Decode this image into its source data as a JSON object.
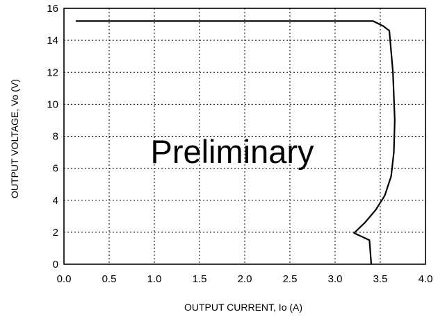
{
  "chart_data": {
    "type": "line",
    "xlabel": "OUTPUT CURRENT, Io (A)",
    "ylabel": "OUTPUT VOLTAGE, Vo (V)",
    "xlim": [
      0,
      4.0
    ],
    "ylim": [
      0,
      16
    ],
    "x_ticks": [
      "0.0",
      "0.5",
      "1.0",
      "1.5",
      "2.0",
      "2.5",
      "3.0",
      "3.5",
      "4.0"
    ],
    "y_ticks": [
      "0",
      "2",
      "4",
      "6",
      "8",
      "10",
      "12",
      "14",
      "16"
    ],
    "grid": true,
    "grid_style": "dotted",
    "annotation": "Preliminary",
    "series": [
      {
        "points": [
          [
            0.13,
            15.2
          ],
          [
            3.42,
            15.2
          ],
          [
            3.53,
            14.9
          ],
          [
            3.6,
            14.6
          ],
          [
            3.64,
            12.0
          ],
          [
            3.66,
            9.0
          ],
          [
            3.65,
            7.0
          ],
          [
            3.62,
            5.5
          ],
          [
            3.55,
            4.3
          ],
          [
            3.45,
            3.4
          ],
          [
            3.33,
            2.6
          ],
          [
            3.21,
            1.95
          ],
          [
            3.38,
            1.5
          ],
          [
            3.4,
            0.0
          ]
        ]
      }
    ]
  }
}
